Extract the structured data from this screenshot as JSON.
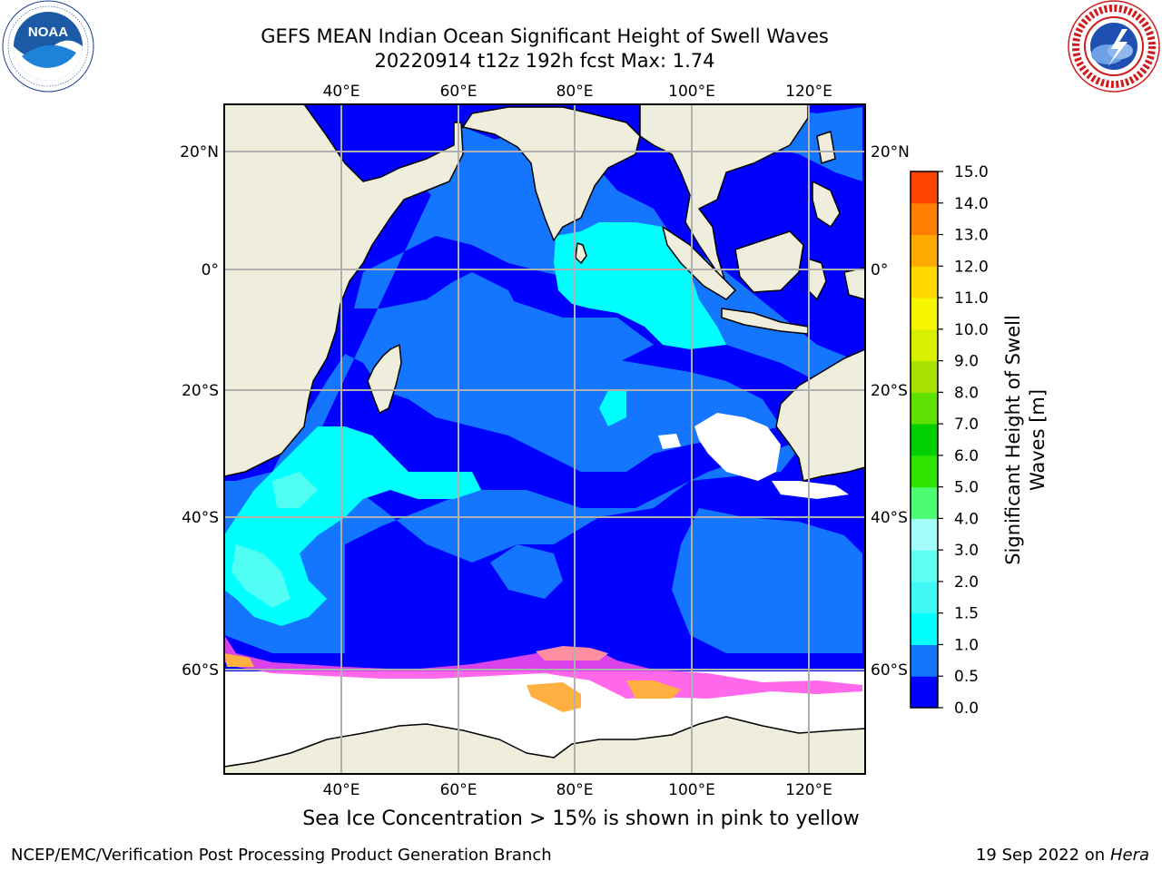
{
  "title": {
    "line1": "GEFS MEAN Indian Ocean Significant Height of Swell Waves",
    "line2": "20220914 t12z 192h fcst   Max: 1.74"
  },
  "logos": {
    "left": {
      "name": "NOAA",
      "ring_text": "NATIONAL OCEANIC AND ATMOSPHERIC ADMINISTRATION · U.S. DEPARTMENT OF COMMERCE"
    },
    "right": {
      "name": "NATIONAL WEATHER SERVICE"
    }
  },
  "map": {
    "lon_ticks_top": [
      "40°E",
      "60°E",
      "80°E",
      "100°E",
      "120°E"
    ],
    "lon_ticks_bottom": [
      "40°E",
      "60°E",
      "80°E",
      "100°E",
      "120°E"
    ],
    "lat_ticks_left": [
      "20°N",
      "0°",
      "20°S",
      "40°S",
      "60°S"
    ],
    "lat_ticks_right": [
      "20°N",
      "0°",
      "20°S",
      "40°S",
      "60°S"
    ],
    "colors": {
      "land": "#efeedd",
      "grid": "#b0b0b0"
    }
  },
  "colorbar": {
    "title_line1": "Significant Height of Swell",
    "title_line2": "Waves [m]",
    "labels": [
      "0.0",
      "0.5",
      "1.0",
      "1.5",
      "2.0",
      "3.0",
      "4.0",
      "5.0",
      "6.0",
      "7.0",
      "8.0",
      "9.0",
      "10.0",
      "11.0",
      "12.0",
      "13.0",
      "14.0",
      "15.0"
    ],
    "colors": [
      "#0000ff",
      "#1476ff",
      "#00ffff",
      "#3ef9f4",
      "#5ffdf2",
      "#a4fdfb",
      "#4dfd71",
      "#2fe500",
      "#00cf00",
      "#5ee000",
      "#a8e000",
      "#d8f000",
      "#f7f700",
      "#ffd800",
      "#ffaa00",
      "#ff8000",
      "#ff4400",
      "#ff1010",
      "#ff0000"
    ]
  },
  "caption": "Sea Ice Concentration > 15% is shown in pink to yellow",
  "footer": {
    "credit": "NCEP/EMC/Verification Post Processing Product Generation Branch",
    "date_prefix": "19 Sep 2022 on",
    "date_machine": "Hera"
  }
}
